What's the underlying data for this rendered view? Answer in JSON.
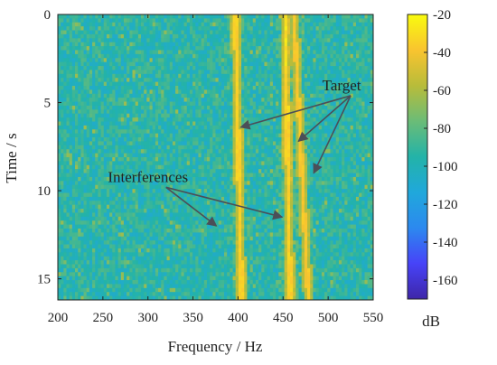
{
  "chart_data": {
    "type": "heatmap",
    "title": "",
    "xlabel": "Frequency / Hz",
    "ylabel": "Time / s",
    "xlim": [
      200,
      550
    ],
    "ylim": [
      0,
      16.2
    ],
    "y_reversed": true,
    "x_ticks": [
      200,
      250,
      300,
      350,
      400,
      450,
      500,
      550
    ],
    "y_ticks": [
      0,
      5,
      10,
      15
    ],
    "colorbar": {
      "label": "dB",
      "range": [
        -170,
        -20
      ],
      "ticks": [
        -20,
        -40,
        -60,
        -80,
        -100,
        -120,
        -140,
        -160
      ],
      "colormap": "parula"
    },
    "background_level_db": -95,
    "lines": [
      {
        "name": "Interferences",
        "x_start": 397,
        "x_end": 404,
        "peak_db": -35
      },
      {
        "name": "Interferences",
        "x_start": 452,
        "x_end": 458,
        "peak_db": -35
      },
      {
        "name": "Target",
        "x_start": 462,
        "x_end": 478,
        "peak_db": -38
      }
    ],
    "annotations": [
      {
        "text": "Target",
        "label_at": [
          515,
          4.3
        ],
        "arrows_to": [
          [
            403,
            6.4
          ],
          [
            467,
            7.2
          ],
          [
            484,
            9.0
          ]
        ]
      },
      {
        "text": "Interferences",
        "label_at": [
          300,
          9.5
        ],
        "arrows_to": [
          [
            376,
            12.0
          ],
          [
            449,
            11.5
          ]
        ]
      }
    ]
  },
  "colors": {
    "parula": [
      "#3e26a8",
      "#4743f8",
      "#2c89ef",
      "#20a8db",
      "#23b3a8",
      "#6bbc77",
      "#b8bc3a",
      "#f9c42f",
      "#f9fb0e"
    ],
    "arrow": "#4b4f58",
    "axis": "#222222"
  }
}
